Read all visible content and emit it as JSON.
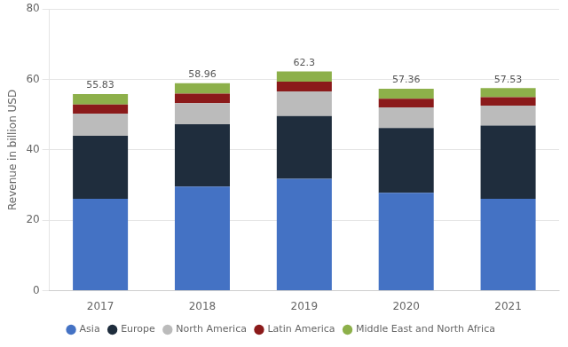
{
  "chart_data": {
    "type": "bar",
    "stacked": true,
    "categories": [
      "2017",
      "2018",
      "2019",
      "2020",
      "2021"
    ],
    "series": [
      {
        "name": "Asia",
        "color": "#4472C4",
        "values": [
          26.1,
          29.6,
          31.8,
          27.8,
          26.1
        ]
      },
      {
        "name": "Europe",
        "color": "#1F2D3D",
        "values": [
          17.9,
          17.7,
          17.8,
          18.4,
          20.8
        ]
      },
      {
        "name": "North America",
        "color": "#BBBBBB",
        "values": [
          6.3,
          6.0,
          7.0,
          5.9,
          5.7
        ]
      },
      {
        "name": "Latin America",
        "color": "#8B1A1A",
        "values": [
          2.6,
          2.7,
          2.8,
          2.4,
          2.4
        ]
      },
      {
        "name": "Middle East and North Africa",
        "color": "#8DB04A",
        "values": [
          2.93,
          2.96,
          2.9,
          2.86,
          2.53
        ]
      }
    ],
    "totals": [
      55.83,
      58.96,
      62.3,
      57.36,
      57.53
    ],
    "y_label": "Revenue in billion USD",
    "ylim": [
      0,
      80
    ],
    "yticks": [
      0,
      20,
      40,
      60,
      80
    ],
    "grid": true,
    "legend": "bottom"
  }
}
